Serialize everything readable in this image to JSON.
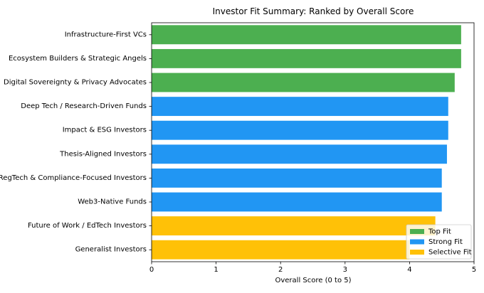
{
  "chart_data": {
    "type": "bar",
    "orientation": "horizontal",
    "title": "Investor Fit Summary: Ranked by Overall Score",
    "xlabel": "Overall Score (0 to 5)",
    "ylabel": "",
    "xlim": [
      0,
      5
    ],
    "xticks": [
      "0",
      "1",
      "2",
      "3",
      "4",
      "5"
    ],
    "grid": false,
    "legend_position": "bottom-right",
    "categories": [
      "Infrastructure-First VCs",
      "Ecosystem Builders & Strategic Angels",
      "Digital Sovereignty & Privacy Advocates",
      "Deep Tech / Research-Driven Funds",
      "Impact & ESG Investors",
      "Thesis-Aligned Investors",
      "RegTech & Compliance-Focused Investors",
      "Web3-Native Funds",
      "Future of Work / EdTech Investors",
      "Generalist Investors"
    ],
    "values": [
      4.8,
      4.8,
      4.7,
      4.6,
      4.6,
      4.58,
      4.5,
      4.5,
      4.4,
      4.0
    ],
    "groups": [
      "Top Fit",
      "Top Fit",
      "Top Fit",
      "Strong Fit",
      "Strong Fit",
      "Strong Fit",
      "Strong Fit",
      "Strong Fit",
      "Selective Fit",
      "Selective Fit"
    ],
    "legend": [
      {
        "name": "Top Fit",
        "color": "#4caf50"
      },
      {
        "name": "Strong Fit",
        "color": "#2196f3"
      },
      {
        "name": "Selective Fit",
        "color": "#ffc107"
      }
    ]
  }
}
